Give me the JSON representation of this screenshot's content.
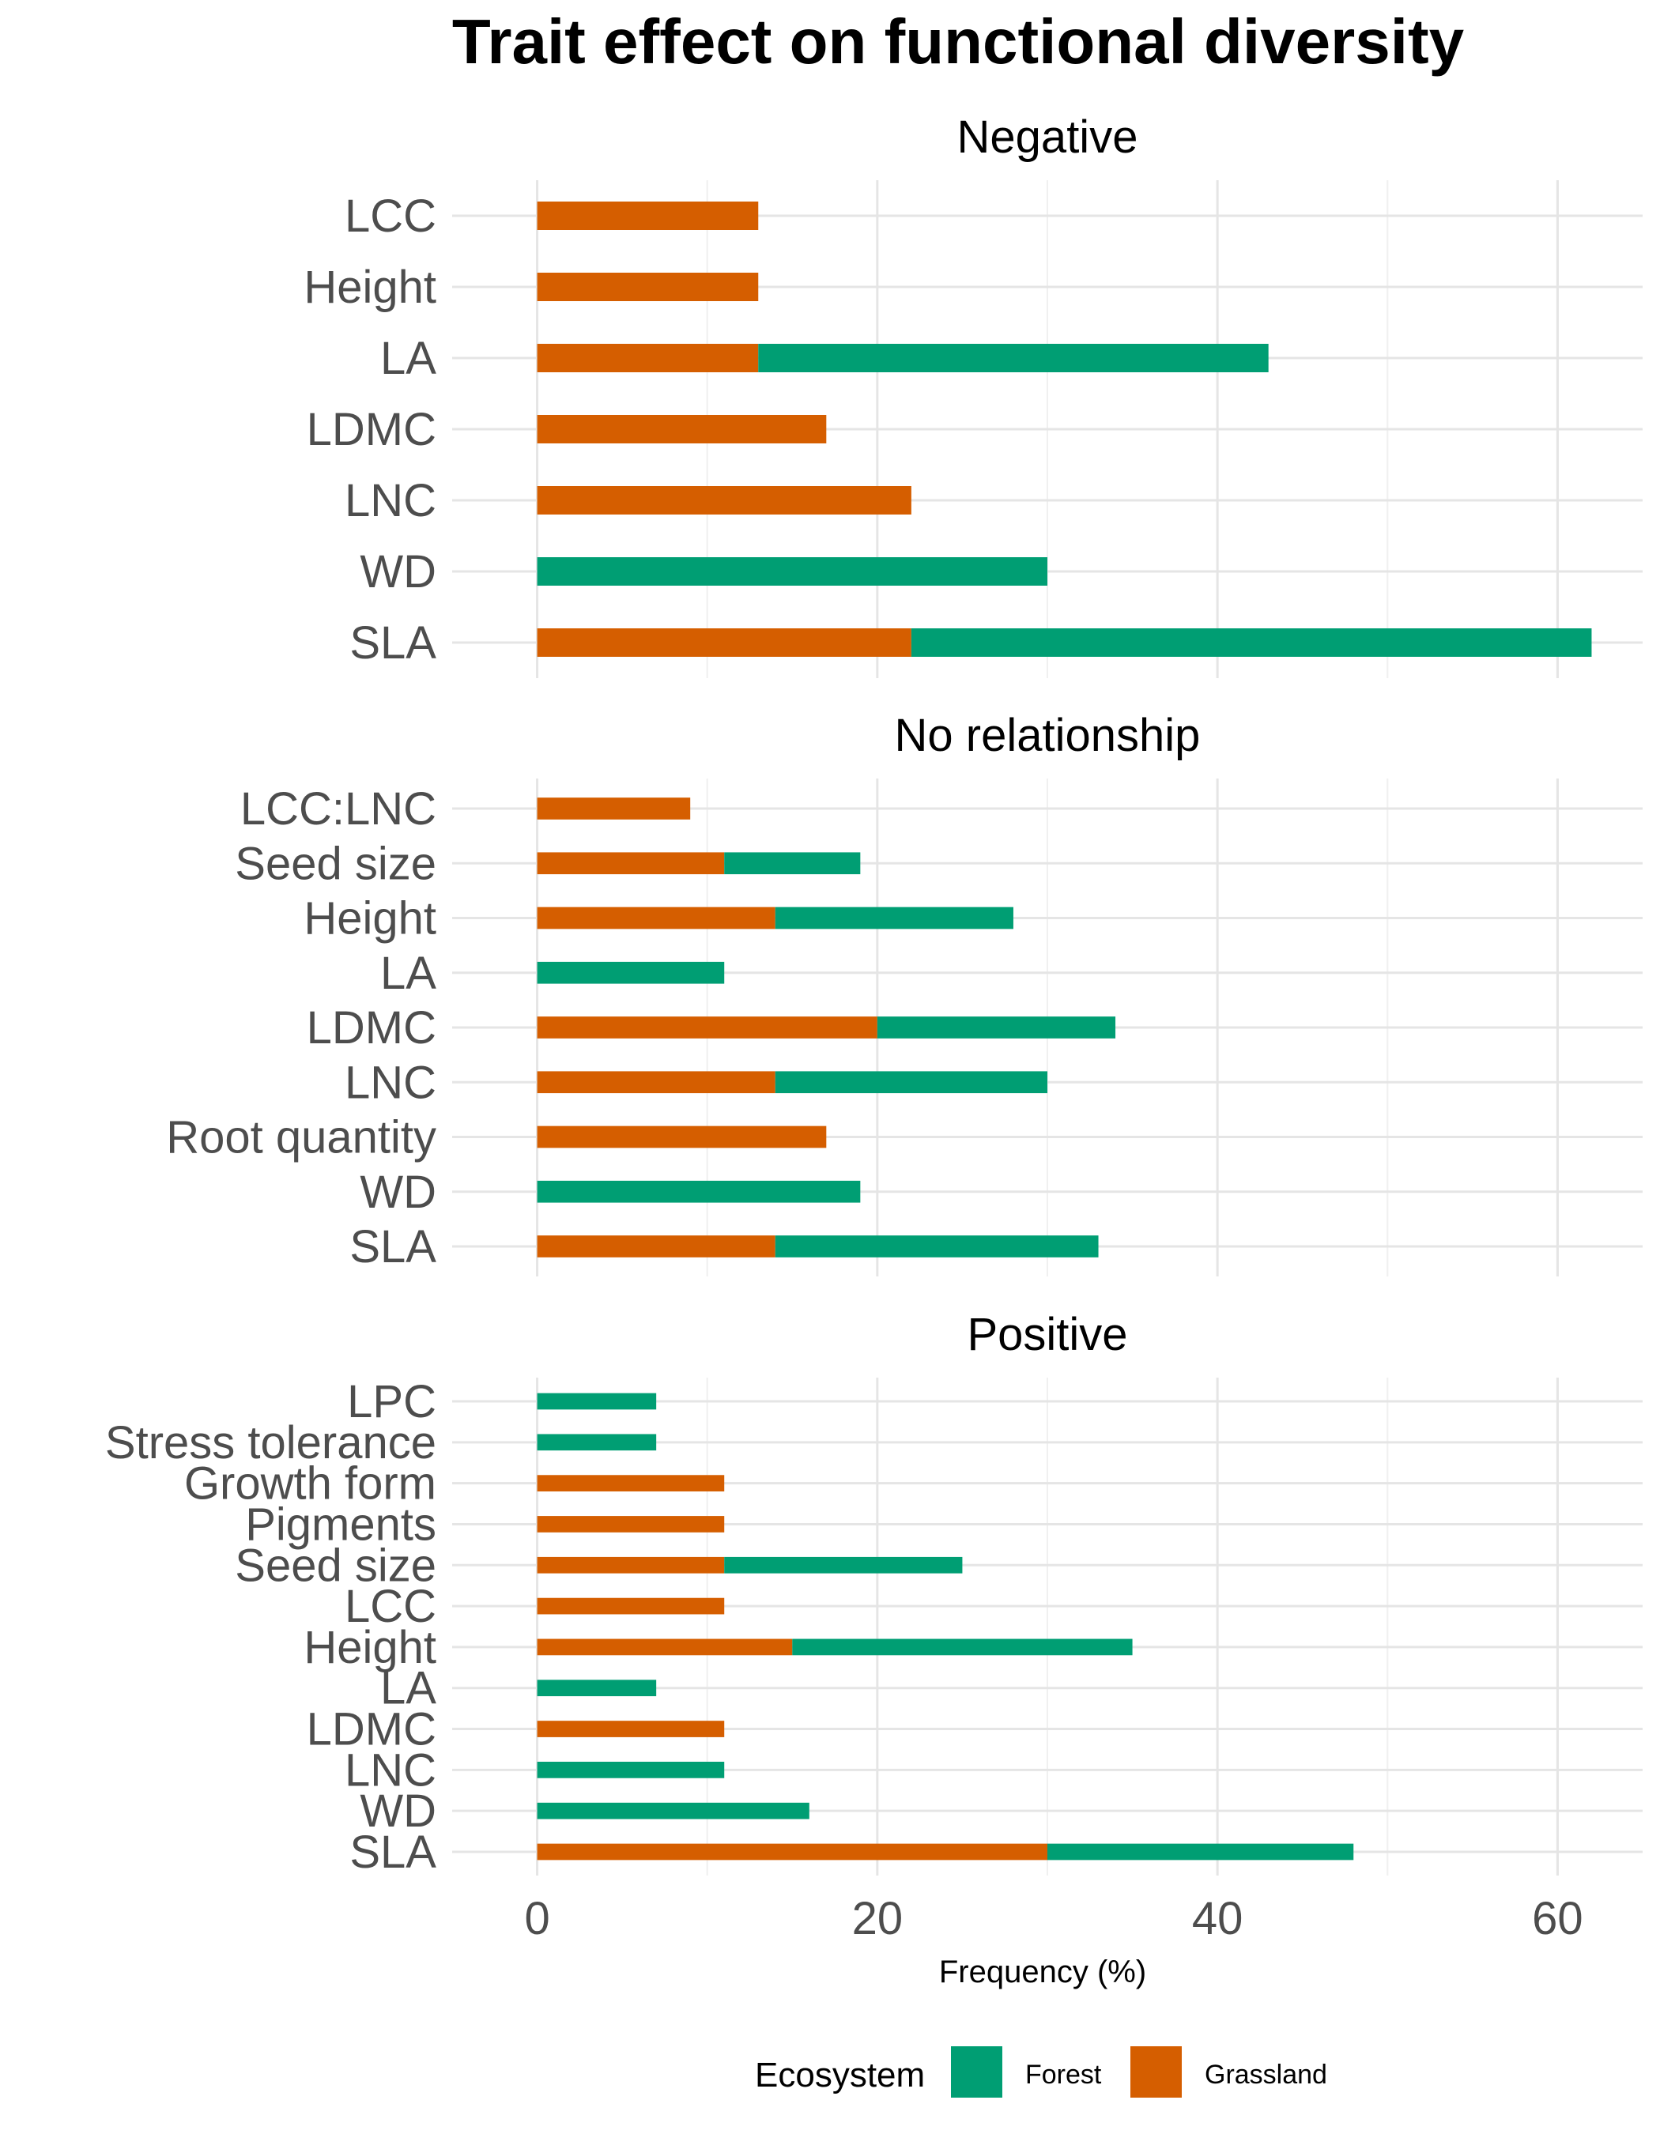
{
  "chart_data": {
    "type": "bar",
    "orientation": "horizontal",
    "stacked": true,
    "title": "Trait effect on functional diversity",
    "xlabel": "Frequency (%)",
    "xlim": [
      -5,
      65
    ],
    "xticks": [
      0,
      20,
      40,
      60
    ],
    "grid": true,
    "colors": {
      "Forest": "#009e73",
      "Grassland": "#d55e00"
    },
    "legend": {
      "title": "Ecosystem",
      "position": "bottom",
      "entries": [
        {
          "name": "Forest",
          "color": "#009e73"
        },
        {
          "name": "Grassland",
          "color": "#d55e00"
        }
      ]
    },
    "facets": [
      {
        "label": "Negative",
        "categories": [
          "LCC",
          "Height",
          "LA",
          "LDMC",
          "LNC",
          "WD",
          "SLA"
        ],
        "series": [
          {
            "name": "Grassland",
            "values": [
              13,
              13,
              13,
              17,
              22,
              0,
              22
            ]
          },
          {
            "name": "Forest",
            "values": [
              0,
              0,
              30,
              0,
              0,
              30,
              40
            ]
          }
        ]
      },
      {
        "label": "No relationship",
        "categories": [
          "LCC:LNC",
          "Seed size",
          "Height",
          "LA",
          "LDMC",
          "LNC",
          "Root quantity",
          "WD",
          "SLA"
        ],
        "series": [
          {
            "name": "Grassland",
            "values": [
              9,
              11,
              14,
              0,
              20,
              14,
              17,
              0,
              14
            ]
          },
          {
            "name": "Forest",
            "values": [
              0,
              8,
              14,
              11,
              14,
              16,
              0,
              19,
              19
            ]
          }
        ]
      },
      {
        "label": "Positive",
        "categories": [
          "LPC",
          "Stress tolerance",
          "Growth form",
          "Pigments",
          "Seed size",
          "LCC",
          "Height",
          "LA",
          "LDMC",
          "LNC",
          "WD",
          "SLA"
        ],
        "series": [
          {
            "name": "Grassland",
            "values": [
              0,
              0,
              11,
              11,
              11,
              11,
              15,
              0,
              11,
              0,
              0,
              30
            ]
          },
          {
            "name": "Forest",
            "values": [
              7,
              7,
              0,
              0,
              14,
              0,
              20,
              7,
              0,
              11,
              16,
              18
            ]
          }
        ]
      }
    ]
  }
}
